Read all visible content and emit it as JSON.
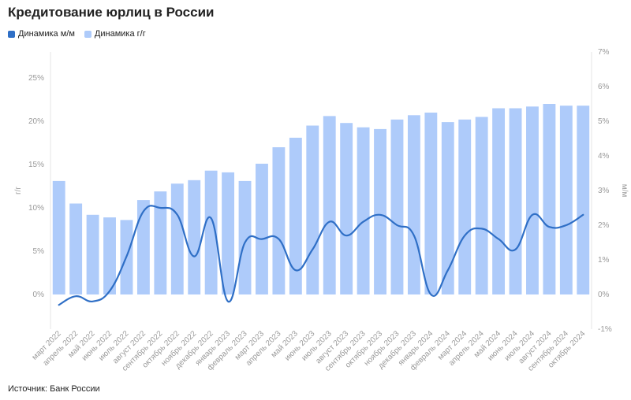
{
  "title": "Кредитование юрлиц в России",
  "source": "Источник: Банк России",
  "legend": [
    {
      "label": "Динамика м/м",
      "color": "#2f6fc6"
    },
    {
      "label": "Динамика г/г",
      "color": "#aecbfa"
    }
  ],
  "chart_data": {
    "type": "bar",
    "categories": [
      "март 2022",
      "апрель 2022",
      "май 2022",
      "июнь 2022",
      "июль 2022",
      "август 2022",
      "сентябрь 2022",
      "октябрь 2022",
      "ноябрь 2022",
      "декабрь 2022",
      "январь 2023",
      "февраль 2023",
      "март 2023",
      "апрель 2023",
      "май 2023",
      "июнь 2023",
      "июль 2023",
      "август 2023",
      "сентябрь 2023",
      "октябрь 2023",
      "ноябрь 2023",
      "декабрь 2023",
      "январь 2024",
      "февраль 2024",
      "март 2024",
      "апрель 2024",
      "май 2024",
      "июнь 2024",
      "июль 2024",
      "август 2024",
      "сентябрь 2024",
      "октябрь 2024"
    ],
    "series": [
      {
        "name": "Динамика г/г",
        "axis": "left",
        "type": "bar",
        "color": "#aecbfa",
        "values": [
          13.1,
          10.5,
          9.2,
          8.9,
          8.6,
          10.9,
          11.9,
          12.8,
          13.2,
          14.3,
          14.1,
          13.1,
          15.1,
          17.0,
          18.1,
          19.5,
          20.6,
          19.8,
          19.3,
          19.1,
          20.2,
          20.7,
          21.0,
          19.9,
          20.2,
          20.5,
          21.5,
          21.5,
          21.7,
          22.0,
          21.8,
          21.8
        ]
      },
      {
        "name": "Динамика м/м",
        "axis": "right",
        "type": "line",
        "color": "#2f6fc6",
        "values": [
          -0.3,
          -0.05,
          -0.2,
          0.1,
          1.1,
          2.4,
          2.5,
          2.3,
          1.1,
          2.2,
          -0.2,
          1.5,
          1.6,
          1.6,
          0.7,
          1.3,
          2.1,
          1.7,
          2.1,
          2.3,
          2.0,
          1.7,
          0.0,
          0.7,
          1.7,
          1.9,
          1.6,
          1.3,
          2.3,
          1.95,
          2.0,
          2.3
        ]
      }
    ],
    "y_left": {
      "label": "г/г",
      "ylim": [
        -4,
        28
      ],
      "ticks": [
        0,
        5,
        10,
        15,
        20,
        25
      ],
      "tick_labels": [
        "0%",
        "5%",
        "10%",
        "15%",
        "20%",
        "25%"
      ]
    },
    "y_right": {
      "label": "м/м",
      "ylim": [
        -1,
        7
      ],
      "ticks": [
        -1,
        0,
        1,
        2,
        3,
        4,
        5,
        6,
        7
      ],
      "tick_labels": [
        "-1%",
        "0%",
        "1%",
        "2%",
        "3%",
        "4%",
        "5%",
        "6%",
        "7%"
      ]
    },
    "grid": false
  }
}
